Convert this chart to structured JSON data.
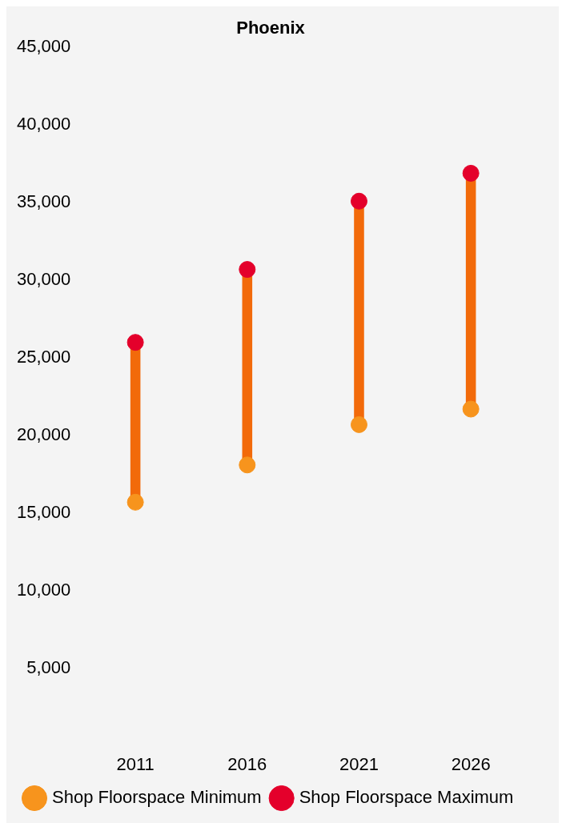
{
  "chart_data": {
    "type": "scatter",
    "title": "Phoenix",
    "categories": [
      "2011",
      "2016",
      "2021",
      "2026"
    ],
    "series": [
      {
        "type": "bar",
        "color": "#f26a0a",
        "base": [
          15700,
          18100,
          20700,
          21700
        ],
        "values": [
          10300,
          12600,
          14400,
          15200
        ]
      },
      {
        "name": "Shop Floorspace Minimum",
        "color": "#f7941d",
        "values": [
          15700,
          18100,
          20700,
          21700
        ]
      },
      {
        "name": "Shop Floorspace Maximum",
        "color": "#e4002b",
        "values": [
          26000,
          30700,
          35100,
          36900
        ]
      }
    ],
    "ylim": [
      0,
      45000
    ],
    "yticks": [
      {
        "value": 5000,
        "label": "5,000"
      },
      {
        "value": 10000,
        "label": "10,000"
      },
      {
        "value": 15000,
        "label": "15,000"
      },
      {
        "value": 20000,
        "label": "20,000"
      },
      {
        "value": 25000,
        "label": "25,000"
      },
      {
        "value": 30000,
        "label": "30,000"
      },
      {
        "value": 35000,
        "label": "35,000"
      },
      {
        "value": 40000,
        "label": "40,000"
      },
      {
        "value": 45000,
        "label": "45,000"
      }
    ],
    "marker": "circle",
    "legend": "bottom"
  }
}
